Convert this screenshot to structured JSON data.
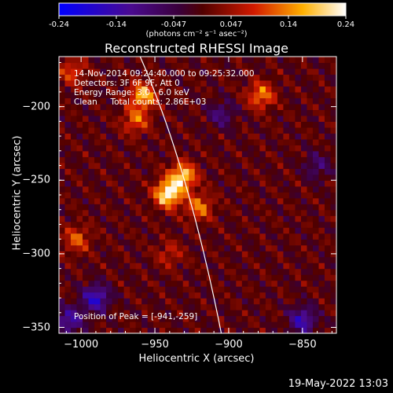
{
  "colorbar": {
    "ticks": [
      "-0.24",
      "-0.14",
      "-0.047",
      "0.047",
      "0.14",
      "0.24"
    ],
    "units": "(photons cm⁻² s⁻¹ asec⁻²)"
  },
  "chart_data": {
    "type": "heatmap",
    "title": "Reconstructed RHESSI Image",
    "xlabel": "Heliocentric X (arcsec)",
    "ylabel": "Heliocentric Y (arcsec)",
    "xlim": [
      -1015,
      -827
    ],
    "ylim": [
      -354,
      -166
    ],
    "xticks": [
      "-1000",
      "-950",
      "-900",
      "-850"
    ],
    "yticks": [
      "-200",
      "-250",
      "-300",
      "-350"
    ],
    "zlim": [
      -0.24,
      0.24
    ],
    "colormap": "blue-purple-red-yellow-white",
    "peak": [
      -941,
      -259
    ],
    "sources": [
      {
        "x": -941,
        "y": -259,
        "value": 0.24
      },
      {
        "x": -931,
        "y": -247,
        "value": 0.2
      },
      {
        "x": -958,
        "y": -192,
        "value": 0.18
      },
      {
        "x": -963,
        "y": -209,
        "value": 0.12
      },
      {
        "x": -920,
        "y": -268,
        "value": 0.13
      },
      {
        "x": -878,
        "y": -192,
        "value": 0.14
      },
      {
        "x": -1006,
        "y": -176,
        "value": 0.1
      },
      {
        "x": -1003,
        "y": -290,
        "value": 0.11
      },
      {
        "x": -940,
        "y": -300,
        "value": 0.07
      }
    ],
    "negative_regions": [
      {
        "x": -990,
        "y": -330,
        "value": -0.17
      },
      {
        "x": -1008,
        "y": -345,
        "value": -0.14
      },
      {
        "x": -850,
        "y": -345,
        "value": -0.15
      },
      {
        "x": -905,
        "y": -205,
        "value": -0.09
      },
      {
        "x": -840,
        "y": -240,
        "value": -0.08
      }
    ],
    "limb_curve": [
      [
        -960,
        -166
      ],
      [
        -930,
        -250
      ],
      [
        -905,
        -354
      ]
    ],
    "annotations": [
      "14-Nov-2014 09:24:40.000 to 09:25:32.000",
      "Detectors: 3F 6F 9F, Att 0",
      "Energy Range: 3.0 - 6.0 keV",
      "Clean     Total counts: 2.86E+03"
    ],
    "peak_label": "Position of Peak = [-941,-259]"
  },
  "datestamp": "19-May-2022 13:03"
}
